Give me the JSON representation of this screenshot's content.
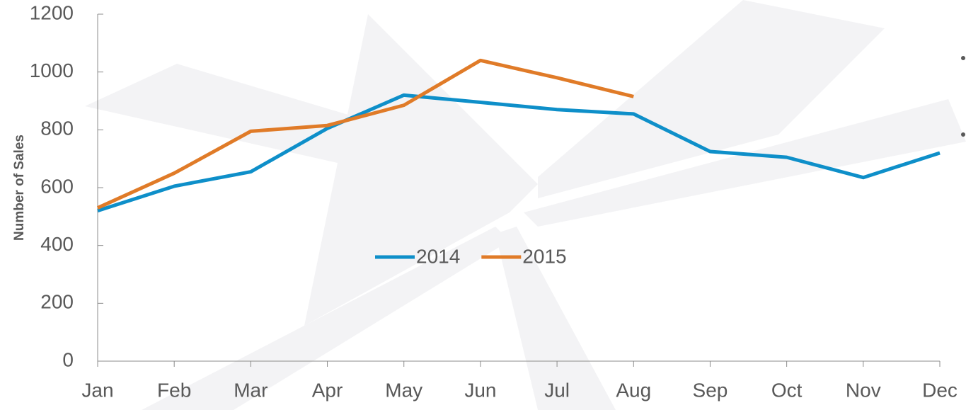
{
  "chart_data": {
    "type": "line",
    "y_axis_label": "Number of Sales",
    "categories": [
      "Jan",
      "Feb",
      "Mar",
      "Apr",
      "May",
      "Jun",
      "Jul",
      "Aug",
      "Sep",
      "Oct",
      "Nov",
      "Dec"
    ],
    "series": [
      {
        "name": "2014",
        "color": "#0e8fc9",
        "values": [
          520,
          605,
          655,
          805,
          920,
          895,
          870,
          855,
          725,
          705,
          635,
          720
        ]
      },
      {
        "name": "2015",
        "color": "#e07b28",
        "values": [
          530,
          650,
          795,
          815,
          885,
          1040,
          980,
          915,
          null,
          null,
          null,
          null
        ]
      }
    ],
    "ylim": [
      0,
      1200
    ],
    "yticks": [
      0,
      200,
      400,
      600,
      800,
      1000,
      1200
    ],
    "grid": false
  }
}
